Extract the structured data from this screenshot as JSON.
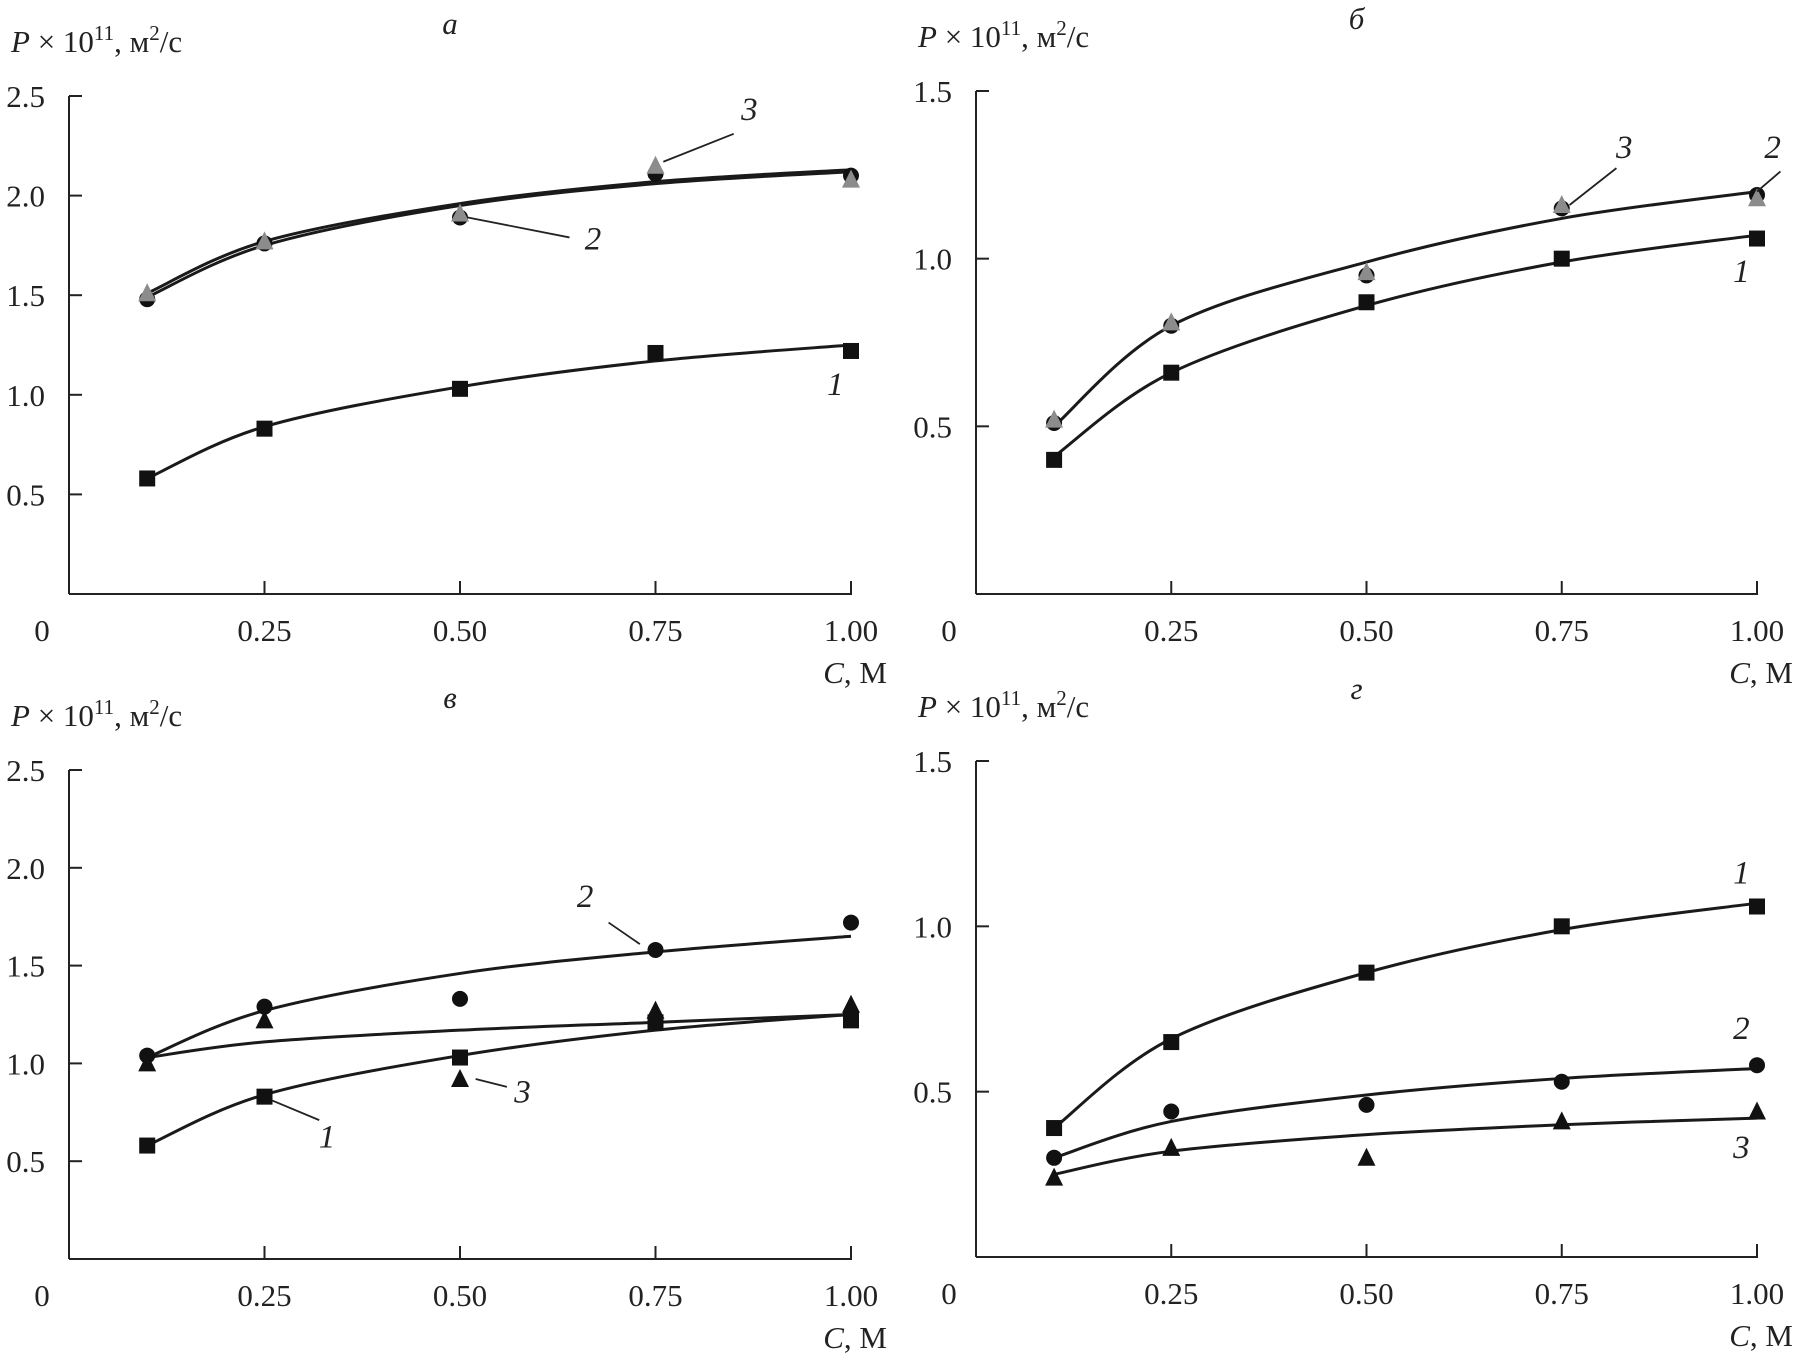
{
  "chart_data": [
    {
      "type": "line",
      "panel": "а",
      "ylabel": {
        "var": "P",
        "mult": " × 10",
        "exp": "11",
        "unit": ", м",
        "unit_exp": "2",
        "unit_tail": "/с"
      },
      "xlabel": {
        "var": "C",
        "unit": ", М"
      },
      "xlim": [
        0,
        1.0
      ],
      "ylim": [
        0,
        2.5
      ],
      "xticks": [
        "0",
        "0.25",
        "0.50",
        "0.75",
        "1.00"
      ],
      "xtick_values": [
        0,
        0.25,
        0.5,
        0.75,
        1.0
      ],
      "yticks": [
        "0.5",
        "1.0",
        "1.5",
        "2.0",
        "2.5"
      ],
      "ytick_values": [
        0.5,
        1.0,
        1.5,
        2.0,
        2.5
      ],
      "x": [
        0.1,
        0.25,
        0.5,
        0.75,
        1.0
      ],
      "series": [
        {
          "name": "1",
          "marker": "square",
          "color": "#111111",
          "values": [
            0.58,
            0.83,
            1.03,
            1.21,
            1.22
          ],
          "fit": [
            0.58,
            0.84,
            1.04,
            1.17,
            1.25
          ]
        },
        {
          "name": "2",
          "marker": "circle",
          "color": "#111111",
          "values": [
            1.48,
            1.76,
            1.89,
            2.11,
            2.1
          ],
          "fit": [
            1.49,
            1.75,
            1.95,
            2.06,
            2.12
          ]
        },
        {
          "name": "3",
          "marker": "triangle",
          "color": "#8c8c8c",
          "values": [
            1.51,
            1.77,
            1.91,
            2.15,
            2.08
          ],
          "fit": [
            1.51,
            1.77,
            1.96,
            2.07,
            2.13
          ]
        }
      ],
      "annotations": [
        {
          "text": "3",
          "x": 0.87,
          "y": 2.38,
          "from": [
            0.76,
            2.17
          ],
          "to": [
            0.85,
            2.31
          ]
        },
        {
          "text": "2",
          "x": 0.67,
          "y": 1.73,
          "from": [
            0.51,
            1.89
          ],
          "to": [
            0.64,
            1.79
          ]
        },
        {
          "text": "1",
          "x": 0.98,
          "y": 1.0,
          "from": null,
          "to": null
        }
      ]
    },
    {
      "type": "line",
      "panel": "б",
      "ylabel": {
        "var": "P",
        "mult": " × 10",
        "exp": "11",
        "unit": ", м",
        "unit_exp": "2",
        "unit_tail": "/с"
      },
      "xlabel": {
        "var": "C",
        "unit": ", М"
      },
      "xlim": [
        0,
        1.0
      ],
      "ylim": [
        0,
        1.5
      ],
      "xticks": [
        "0",
        "0.25",
        "0.50",
        "0.75",
        "1.00"
      ],
      "xtick_values": [
        0,
        0.25,
        0.5,
        0.75,
        1.0
      ],
      "yticks": [
        "0.5",
        "1.0",
        "1.5"
      ],
      "ytick_values": [
        0.5,
        1.0,
        1.5
      ],
      "x": [
        0.1,
        0.25,
        0.5,
        0.75,
        1.0
      ],
      "series": [
        {
          "name": "1",
          "marker": "square",
          "color": "#111111",
          "values": [
            0.4,
            0.66,
            0.87,
            1.0,
            1.06
          ],
          "fit": [
            0.41,
            0.66,
            0.86,
            0.99,
            1.07
          ]
        },
        {
          "name": "2",
          "marker": "circle",
          "color": "#111111",
          "values": [
            0.51,
            0.8,
            0.95,
            1.15,
            1.19
          ],
          "fit": [
            0.5,
            0.8,
            0.99,
            1.12,
            1.2
          ]
        },
        {
          "name": "3",
          "marker": "triangle",
          "color": "#8c8c8c",
          "values": [
            0.52,
            0.81,
            0.96,
            1.16,
            1.18
          ],
          "fit": null
        }
      ],
      "annotations": [
        {
          "text": "3",
          "x": 0.83,
          "y": 1.3,
          "from": [
            0.76,
            1.16
          ],
          "to": [
            0.82,
            1.27
          ]
        },
        {
          "text": "2",
          "x": 1.02,
          "y": 1.3,
          "from": [
            1.0,
            1.2
          ],
          "to": [
            1.03,
            1.26
          ]
        },
        {
          "text": "1",
          "x": 0.98,
          "y": 0.93,
          "from": null,
          "to": null
        }
      ]
    },
    {
      "type": "line",
      "panel": "в",
      "ylabel": {
        "var": "P",
        "mult": " × 10",
        "exp": "11",
        "unit": ", м",
        "unit_exp": "2",
        "unit_tail": "/с"
      },
      "xlabel": {
        "var": "C",
        "unit": ", М"
      },
      "xlim": [
        0,
        1.0
      ],
      "ylim": [
        0,
        2.5
      ],
      "xticks": [
        "0",
        "0.25",
        "0.50",
        "0.75",
        "1.00"
      ],
      "xtick_values": [
        0,
        0.25,
        0.5,
        0.75,
        1.0
      ],
      "yticks": [
        "0.5",
        "1.0",
        "1.5",
        "2.0",
        "2.5"
      ],
      "ytick_values": [
        0.5,
        1.0,
        1.5,
        2.0,
        2.5
      ],
      "x": [
        0.1,
        0.25,
        0.5,
        0.75,
        1.0
      ],
      "series": [
        {
          "name": "1",
          "marker": "square",
          "color": "#111111",
          "values": [
            0.58,
            0.83,
            1.03,
            1.21,
            1.22
          ],
          "fit": [
            0.58,
            0.84,
            1.04,
            1.17,
            1.25
          ]
        },
        {
          "name": "2",
          "marker": "circle",
          "color": "#111111",
          "values": [
            1.04,
            1.29,
            1.33,
            1.58,
            1.72
          ],
          "fit": [
            1.03,
            1.27,
            1.46,
            1.57,
            1.65
          ]
        },
        {
          "name": "3",
          "marker": "triangle",
          "color": "#111111",
          "values": [
            1.0,
            1.22,
            0.92,
            1.27,
            1.3
          ],
          "fit": [
            1.03,
            1.11,
            1.17,
            1.21,
            1.25
          ]
        }
      ],
      "annotations": [
        {
          "text": "2",
          "x": 0.66,
          "y": 1.8,
          "from": [
            0.73,
            1.61
          ],
          "to": [
            0.69,
            1.72
          ]
        },
        {
          "text": "3",
          "x": 0.58,
          "y": 0.8,
          "from": [
            0.52,
            0.92
          ],
          "to": [
            0.56,
            0.88
          ]
        },
        {
          "text": "1",
          "x": 0.33,
          "y": 0.57,
          "from": [
            0.26,
            0.81
          ],
          "to": [
            0.32,
            0.71
          ]
        }
      ]
    },
    {
      "type": "line",
      "panel": "г",
      "ylabel": {
        "var": "P",
        "mult": " × 10",
        "exp": "11",
        "unit": ", м",
        "unit_exp": "2",
        "unit_tail": "/с"
      },
      "xlabel": {
        "var": "C",
        "unit": ", М"
      },
      "xlim": [
        0,
        1.0
      ],
      "ylim": [
        0,
        1.5
      ],
      "xticks": [
        "0",
        "0.25",
        "0.50",
        "0.75",
        "1.00"
      ],
      "xtick_values": [
        0,
        0.25,
        0.5,
        0.75,
        1.0
      ],
      "yticks": [
        "0.5",
        "1.0",
        "1.5"
      ],
      "ytick_values": [
        0.5,
        1.0,
        1.5
      ],
      "x": [
        0.1,
        0.25,
        0.5,
        0.75,
        1.0
      ],
      "series": [
        {
          "name": "1",
          "marker": "square",
          "color": "#111111",
          "values": [
            0.39,
            0.65,
            0.86,
            1.0,
            1.06
          ],
          "fit": [
            0.39,
            0.66,
            0.86,
            0.99,
            1.07
          ]
        },
        {
          "name": "2",
          "marker": "circle",
          "color": "#111111",
          "values": [
            0.3,
            0.44,
            0.46,
            0.53,
            0.58
          ],
          "fit": [
            0.3,
            0.41,
            0.49,
            0.54,
            0.57
          ]
        },
        {
          "name": "3",
          "marker": "triangle",
          "color": "#111111",
          "values": [
            0.24,
            0.33,
            0.3,
            0.41,
            0.44
          ],
          "fit": [
            0.25,
            0.32,
            0.37,
            0.4,
            0.42
          ]
        }
      ],
      "annotations": [
        {
          "text": "1",
          "x": 0.98,
          "y": 1.13,
          "from": null,
          "to": null
        },
        {
          "text": "2",
          "x": 0.98,
          "y": 0.66,
          "from": null,
          "to": null
        },
        {
          "text": "3",
          "x": 0.98,
          "y": 0.3,
          "from": null,
          "to": null
        }
      ]
    }
  ]
}
